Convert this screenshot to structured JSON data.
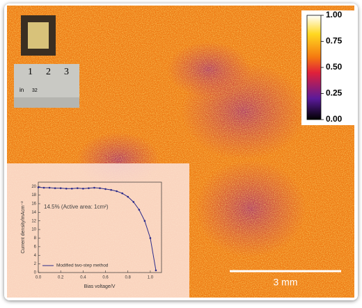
{
  "chart_data": [
    {
      "type": "heatmap",
      "clim": [
        0,
        1
      ],
      "cticks": [
        {
          "value": 0,
          "label": "0.00"
        },
        0.25,
        {
          "value": 0.5,
          "label": "0.50"
        },
        0.75,
        {
          "value": 1,
          "label": "1.00"
        }
      ],
      "scale_bar": "3 mm",
      "ruler_labels": [
        "1",
        "2",
        "3"
      ],
      "ruler_unit": "in",
      "ruler_sub": "32"
    },
    {
      "type": "line",
      "xlabel": "Bias voltage/V",
      "ylabel": "Current density/mAcm⁻²",
      "annotation": "14.5% (Active area: 1cm²)",
      "x": [
        0,
        0.05,
        0.1,
        0.15,
        0.2,
        0.25,
        0.3,
        0.35,
        0.4,
        0.45,
        0.5,
        0.55,
        0.6,
        0.65,
        0.7,
        0.75,
        0.8,
        0.85,
        0.9,
        0.95,
        1.0,
        1.05
      ],
      "series": [
        {
          "name": "Modified two-step method",
          "color": "#2b2b8a",
          "values": [
            19.8,
            19.7,
            19.7,
            19.6,
            19.6,
            19.5,
            19.5,
            19.6,
            19.5,
            19.6,
            19.7,
            19.6,
            19.4,
            19.2,
            18.9,
            18.4,
            17.6,
            16.4,
            14.6,
            12.0,
            8.0,
            0.5
          ]
        }
      ],
      "xlim": [
        0,
        1.1
      ],
      "ylim": [
        0,
        21
      ],
      "xticks": [
        {
          "value": 0,
          "label": "0.0"
        },
        0.2,
        0.4,
        0.6,
        0.8,
        {
          "value": 1,
          "label": "1.0"
        }
      ],
      "yticks": [
        0,
        2,
        4,
        6,
        8,
        10,
        12,
        14,
        16,
        18,
        20
      ],
      "legend": "lower-left"
    }
  ]
}
